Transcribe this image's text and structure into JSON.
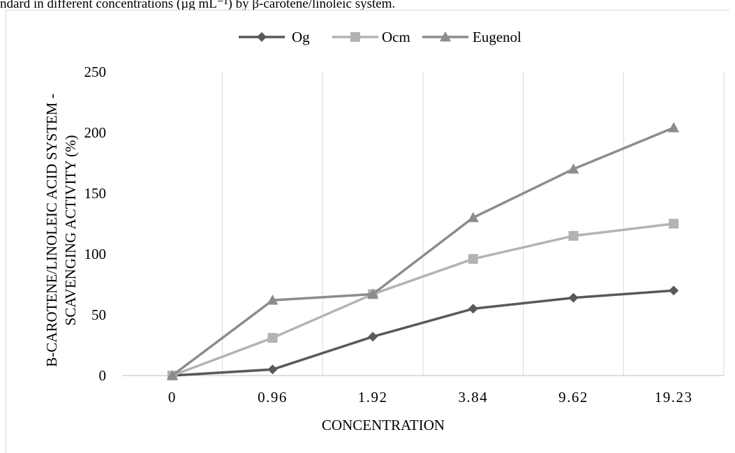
{
  "caption": "ndard in different concentrations (µg mL⁻¹) by β-carotene/linoleic system.",
  "chart_data": {
    "type": "line",
    "categories": [
      "0",
      "0.96",
      "1.92",
      "3.84",
      "9.62",
      "19.23"
    ],
    "series": [
      {
        "name": "Og",
        "marker": "diamond",
        "color": "#595959",
        "values": [
          0,
          5,
          32,
          55,
          64,
          70
        ]
      },
      {
        "name": "Ocm",
        "marker": "square",
        "color": "#b3b3b3",
        "values": [
          0,
          31,
          67,
          96,
          115,
          125
        ]
      },
      {
        "name": "Eugenol",
        "marker": "triangle",
        "color": "#8c8c8c",
        "values": [
          0,
          62,
          67,
          130,
          170,
          204
        ]
      }
    ],
    "xlabel": "CONCENTRATION",
    "ylabel_line1": "B-CAROTENE/LINOLEIC ACID SYSTEM -",
    "ylabel_line2": "SCAVENGING ACTIVITY (%)",
    "ylim": [
      0,
      250
    ],
    "yticks": [
      "0",
      "50",
      "100",
      "150",
      "200",
      "250"
    ],
    "grid": "vertical",
    "legend_position": "top"
  }
}
